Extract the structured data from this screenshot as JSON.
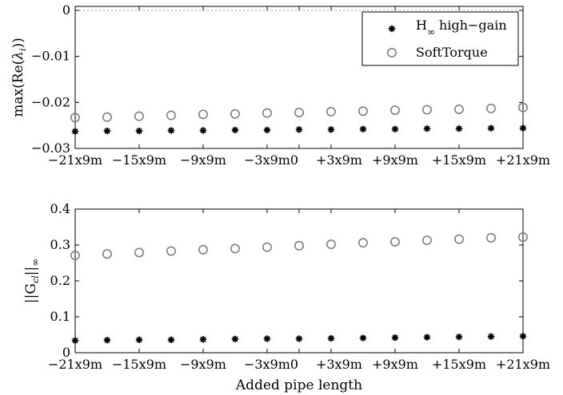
{
  "chart_data": [
    {
      "type": "scatter",
      "ylabel_parts": [
        "max(Re(",
        "λ",
        "i",
        "))"
      ],
      "x_tick_labels": [
        "−21x9m",
        "−15x9m",
        "−9x9m",
        "−3x9m",
        "0",
        "+3x9m",
        "+9x9m",
        "+15x9m",
        "+21x9m"
      ],
      "x_tick_values": [
        -21,
        -15,
        -9,
        -3,
        0,
        3,
        9,
        15,
        21
      ],
      "y_tick_labels": [
        "0",
        "−0.01",
        "−0.02",
        "−0.03"
      ],
      "y_tick_values": [
        0,
        -0.01,
        -0.02,
        -0.03
      ],
      "xlim": [
        -21,
        21
      ],
      "ylim": [
        -0.03,
        0
      ],
      "legend": {
        "placement": "top-right",
        "items": [
          {
            "label_main": "H",
            "label_sub": "∞",
            "label_rest": " high−gain",
            "marker": "star"
          },
          {
            "label_main": "SoftTorque",
            "label_sub": "",
            "label_rest": "",
            "marker": "circle"
          }
        ]
      },
      "series": [
        {
          "name": "H∞ high-gain",
          "marker": "star",
          "color": "#000000",
          "x": [
            -21,
            -18,
            -15,
            -12,
            -9,
            -6,
            -3,
            0,
            3,
            6,
            9,
            12,
            15,
            18,
            21
          ],
          "y": [
            -0.0263,
            -0.0262,
            -0.0262,
            -0.0261,
            -0.0261,
            -0.026,
            -0.026,
            -0.0259,
            -0.0259,
            -0.0258,
            -0.0258,
            -0.0257,
            -0.0257,
            -0.0256,
            -0.0256
          ]
        },
        {
          "name": "SoftTorque",
          "marker": "circle",
          "color": "#808080",
          "x": [
            -21,
            -18,
            -15,
            -12,
            -9,
            -6,
            -3,
            0,
            3,
            6,
            9,
            12,
            15,
            18,
            21
          ],
          "y": [
            -0.0233,
            -0.0232,
            -0.023,
            -0.0228,
            -0.0226,
            -0.0225,
            -0.0223,
            -0.0222,
            -0.022,
            -0.0219,
            -0.0217,
            -0.0216,
            -0.0215,
            -0.0213,
            -0.0211
          ]
        }
      ]
    },
    {
      "type": "scatter",
      "ylabel_parts": [
        "||G",
        "cl",
        "||",
        "∞"
      ],
      "xlabel": "Added pipe length",
      "x_tick_labels": [
        "−21x9m",
        "−15x9m",
        "−9x9m",
        "−3x9m",
        "0",
        "+3x9m",
        "+9x9m",
        "+15x9m",
        "+21x9m"
      ],
      "x_tick_values": [
        -21,
        -15,
        -9,
        -3,
        0,
        3,
        9,
        15,
        21
      ],
      "y_tick_labels": [
        "0.4",
        "0.3",
        "0.2",
        "0.1",
        "0"
      ],
      "y_tick_values": [
        0.4,
        0.3,
        0.2,
        0.1,
        0
      ],
      "xlim": [
        -21,
        21
      ],
      "ylim": [
        0,
        0.4
      ],
      "series": [
        {
          "name": "H∞ high-gain",
          "marker": "star",
          "color": "#000000",
          "x": [
            -21,
            -18,
            -15,
            -12,
            -9,
            -6,
            -3,
            0,
            3,
            6,
            9,
            12,
            15,
            18,
            21
          ],
          "y": [
            0.034,
            0.035,
            0.036,
            0.036,
            0.037,
            0.038,
            0.039,
            0.039,
            0.04,
            0.041,
            0.042,
            0.043,
            0.044,
            0.045,
            0.046
          ]
        },
        {
          "name": "SoftTorque",
          "marker": "circle",
          "color": "#808080",
          "x": [
            -21,
            -18,
            -15,
            -12,
            -9,
            -6,
            -3,
            0,
            3,
            6,
            9,
            12,
            15,
            18,
            21
          ],
          "y": [
            0.271,
            0.275,
            0.279,
            0.283,
            0.287,
            0.29,
            0.294,
            0.298,
            0.302,
            0.306,
            0.309,
            0.313,
            0.316,
            0.32,
            0.322
          ]
        }
      ]
    }
  ]
}
